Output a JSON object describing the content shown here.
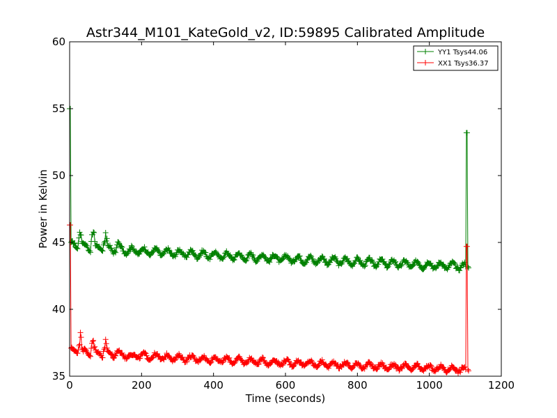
{
  "chart_data": {
    "type": "line",
    "title": "Astr344_M101_KateGold_v2, ID:59895 Calibrated Amplitude",
    "xlabel": "Time (seconds)",
    "ylabel": "Power in Kelvin",
    "xlim": [
      0,
      1200
    ],
    "ylim": [
      35,
      60
    ],
    "xticks": [
      0,
      200,
      400,
      600,
      800,
      1000,
      1200
    ],
    "yticks": [
      35,
      40,
      45,
      50,
      55,
      60
    ],
    "grid": false,
    "legend_position": "top-right",
    "marker": "+",
    "series": [
      {
        "name": "YY1 Tsys44.06",
        "color": "#008000",
        "start_spike": 55.0,
        "baseline_start": 44.8,
        "baseline_end": 43.2,
        "oscillation_amplitude": 0.25,
        "oscillation_period_s": 33,
        "spike_times": [
          30,
          65,
          100,
          135
        ],
        "spike_heights": [
          46.8,
          46.7,
          46.1,
          45.2
        ],
        "end_time": 1105,
        "end_spike": 53.2,
        "last_point": 43.1
      },
      {
        "name": "XX1 Tsys36.37",
        "color": "#ff0000",
        "start_spike": 46.3,
        "baseline_start": 36.9,
        "baseline_end": 35.5,
        "oscillation_amplitude": 0.2,
        "oscillation_period_s": 33,
        "spike_times": [
          30,
          65,
          100,
          135,
          170
        ],
        "spike_heights": [
          38.4,
          38.3,
          37.8,
          37.2,
          36.6
        ],
        "end_time": 1105,
        "end_spike": 44.7,
        "last_point": 35.4
      }
    ]
  }
}
